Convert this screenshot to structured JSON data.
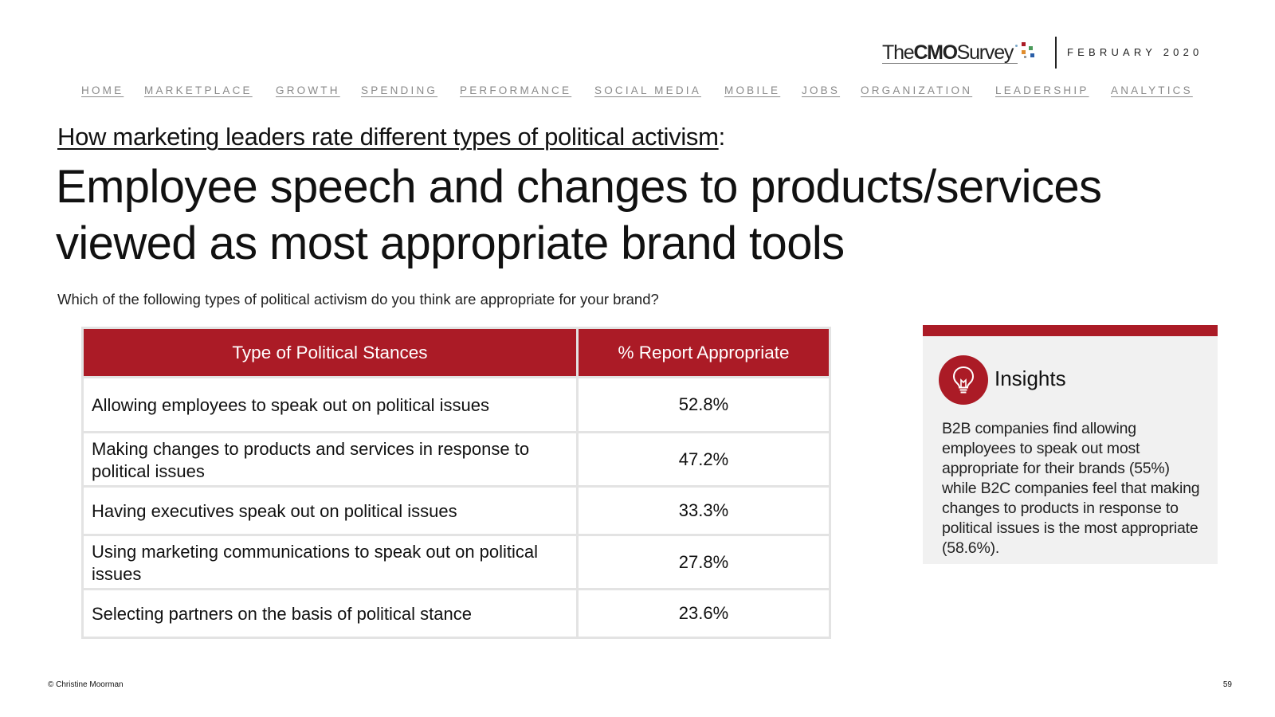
{
  "brand": {
    "logo_prefix": "The",
    "logo_bold": "CMO",
    "logo_suffix": "Survey",
    "date": "FEBRUARY 2020",
    "accent_color": "#ab1b26"
  },
  "nav": {
    "items": [
      "HOME",
      "MARKETPLACE",
      "GROWTH",
      "SPENDING",
      "PERFORMANCE",
      "SOCIAL MEDIA",
      "MOBILE",
      "JOBS",
      "ORGANIZATION",
      "LEADERSHIP",
      "ANALYTICS"
    ]
  },
  "slide": {
    "kicker": "How marketing leaders rate different types of political activism",
    "kicker_suffix": ":",
    "headline": "Employee speech and changes to products/services viewed as most appropriate brand tools",
    "question": "Which of the following types of political activism do you think are appropriate for your brand?"
  },
  "table": {
    "headers": [
      "Type of Political Stances",
      "% Report Appropriate"
    ],
    "rows": [
      {
        "stance": "Allowing employees to speak out on political issues",
        "pct": "52.8%"
      },
      {
        "stance": "Making changes to products and services in response to political issues",
        "pct": "47.2%"
      },
      {
        "stance": "Having executives speak out on political issues",
        "pct": "33.3%"
      },
      {
        "stance": "Using marketing communications to speak out on political issues",
        "pct": "27.8%"
      },
      {
        "stance": "Selecting partners on the basis of political stance",
        "pct": "23.6%"
      }
    ]
  },
  "insights": {
    "icon": "lightbulb-icon",
    "title": "Insights",
    "body": "B2B companies find allowing employees to speak out most appropriate for their brands (55%) while B2C companies feel that making changes to products in response to political issues is the most appropriate (58.6%)."
  },
  "footer": {
    "copyright": "© Christine Moorman",
    "page_number": "59"
  }
}
